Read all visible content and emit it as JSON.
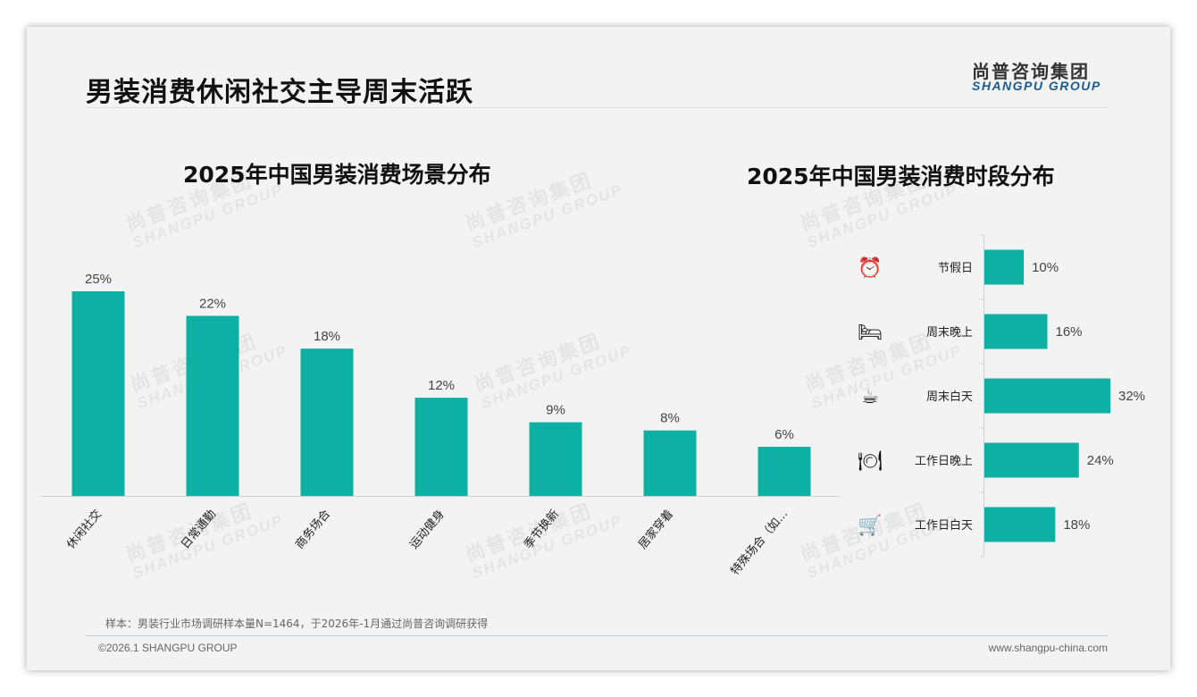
{
  "header": {
    "title": "男装消费休闲社交主导周末活跃",
    "logo_cn": "尚普咨询集团",
    "logo_en": "SHANGPU GROUP"
  },
  "watermark": {
    "cn": "尚普咨询集团",
    "en": "SHANGPU GROUP"
  },
  "chart_data": [
    {
      "type": "bar",
      "title": "2025年中国男装消费场景分布",
      "categories": [
        "休闲社交",
        "日常通勤",
        "商务场合",
        "运动健身",
        "季节换新",
        "居家穿着",
        "特殊场合（如..."
      ],
      "values": [
        25,
        22,
        18,
        12,
        9,
        8,
        6
      ],
      "labels": [
        "25%",
        "22%",
        "18%",
        "12%",
        "9%",
        "8%",
        "6%"
      ],
      "ylim": [
        0,
        25
      ],
      "unit": "%",
      "color": "#0fb0a4"
    },
    {
      "type": "bar",
      "orientation": "horizontal",
      "title": "2025年中国男装消费时段分布",
      "categories": [
        "节假日",
        "周末晚上",
        "周末白天",
        "工作日晚上",
        "工作日白天"
      ],
      "icons": [
        "alarm-clock-icon",
        "bed-icon",
        "coffee-mug-icon",
        "plate-cutlery-icon",
        "shopping-cart-icon"
      ],
      "values": [
        10,
        16,
        32,
        24,
        18
      ],
      "labels": [
        "10%",
        "16%",
        "32%",
        "24%",
        "18%"
      ],
      "xlim": [
        0,
        32
      ],
      "unit": "%",
      "color": "#0fb0a4"
    }
  ],
  "footer": {
    "note": "样本：男装行业市场调研样本量N=1464，于2026年-1月通过尚普咨询调研获得",
    "copyright": "©2026.1 SHANGPU GROUP",
    "url": "www.shangpu-china.com"
  }
}
